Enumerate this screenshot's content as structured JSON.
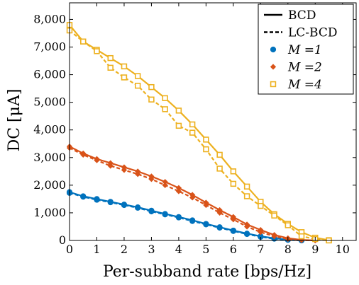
{
  "chart_data": {
    "type": "line",
    "title": "",
    "xlabel": "Per-subband rate [bps/Hz]",
    "ylabel": "DC [μA]",
    "xlim": [
      0,
      10.5
    ],
    "ylim": [
      0,
      8600
    ],
    "xticks": [
      0,
      1,
      2,
      3,
      4,
      5,
      6,
      7,
      8,
      9,
      10
    ],
    "xtick_labels": [
      "0",
      "1",
      "2",
      "3",
      "4",
      "5",
      "6",
      "7",
      "8",
      "9",
      "10"
    ],
    "yticks": [
      0,
      1000,
      2000,
      3000,
      4000,
      5000,
      6000,
      7000,
      8000
    ],
    "ytick_labels": [
      "0",
      "1,000",
      "2,000",
      "3,000",
      "4,000",
      "5,000",
      "6,000",
      "7,000",
      "8,000"
    ],
    "grid": false,
    "legend_position": "top-right",
    "legend": {
      "line_entries": [
        {
          "label": "BCD",
          "style": "solid"
        },
        {
          "label": "LC-BCD",
          "style": "dashed"
        }
      ],
      "marker_entries": [
        {
          "label": "M =1",
          "marker": "circle",
          "color": "#0072BD"
        },
        {
          "label": "M =2",
          "marker": "diamond",
          "color": "#D95319"
        },
        {
          "label": "M =4",
          "marker": "square",
          "color": "#EDB120"
        }
      ]
    },
    "series": [
      {
        "name": "M =1",
        "color": "#0072BD",
        "marker": "circle",
        "bcd": {
          "x": [
            0,
            0.5,
            1,
            1.5,
            2,
            2.5,
            3,
            3.5,
            4,
            4.5,
            5,
            5.5,
            6,
            6.5,
            7,
            7.5,
            8,
            8.5
          ],
          "y": [
            1750,
            1600,
            1500,
            1400,
            1300,
            1200,
            1080,
            960,
            850,
            730,
            600,
            480,
            360,
            250,
            150,
            80,
            30,
            0
          ]
        },
        "lcbcd": {
          "x": [
            0,
            0.5,
            1,
            1.5,
            2,
            2.5,
            3,
            3.5,
            4,
            4.5,
            5,
            5.5,
            6,
            6.5,
            7,
            7.5,
            8,
            8.5
          ],
          "y": [
            1720,
            1580,
            1470,
            1380,
            1280,
            1180,
            1050,
            940,
            830,
            700,
            580,
            460,
            340,
            230,
            130,
            60,
            20,
            0
          ]
        }
      },
      {
        "name": "M =2",
        "color": "#D95319",
        "marker": "diamond",
        "bcd": {
          "x": [
            0,
            0.5,
            1,
            1.5,
            2,
            2.5,
            3,
            3.5,
            4,
            4.5,
            5,
            5.5,
            6,
            6.5,
            7,
            7.5,
            8,
            8.5,
            9
          ],
          "y": [
            3400,
            3150,
            2950,
            2800,
            2650,
            2500,
            2320,
            2120,
            1900,
            1650,
            1370,
            1100,
            850,
            580,
            380,
            200,
            80,
            20,
            0
          ]
        },
        "lcbcd": {
          "x": [
            0,
            0.5,
            1,
            1.5,
            2,
            2.5,
            3,
            3.5,
            4,
            4.5,
            5,
            5.5,
            6,
            6.5,
            7,
            7.5,
            8,
            8.5,
            9
          ],
          "y": [
            3350,
            3100,
            2900,
            2700,
            2550,
            2400,
            2220,
            2000,
            1780,
            1550,
            1280,
            1000,
            760,
            500,
            300,
            150,
            50,
            10,
            0
          ]
        }
      },
      {
        "name": "M =4",
        "color": "#EDB120",
        "marker": "square",
        "bcd": {
          "x": [
            0,
            0.5,
            1,
            1.5,
            2,
            2.5,
            3,
            3.5,
            4,
            4.5,
            5,
            5.5,
            6,
            6.5,
            7,
            7.5,
            8,
            8.5,
            9,
            9.5
          ],
          "y": [
            7800,
            7200,
            6900,
            6600,
            6300,
            5950,
            5550,
            5150,
            4700,
            4200,
            3650,
            3100,
            2500,
            1950,
            1400,
            950,
            600,
            300,
            100,
            10
          ]
        },
        "lcbcd": {
          "x": [
            0,
            0.5,
            1,
            1.5,
            2,
            2.5,
            3,
            3.5,
            4,
            4.5,
            5,
            5.5,
            6,
            6.5,
            7,
            7.5,
            8,
            8.5,
            9,
            9.5
          ],
          "y": [
            7600,
            7200,
            6850,
            6250,
            5900,
            5600,
            5100,
            4750,
            4150,
            3900,
            3300,
            2600,
            2050,
            1600,
            1250,
            900,
            550,
            150,
            50,
            0
          ]
        }
      }
    ]
  }
}
